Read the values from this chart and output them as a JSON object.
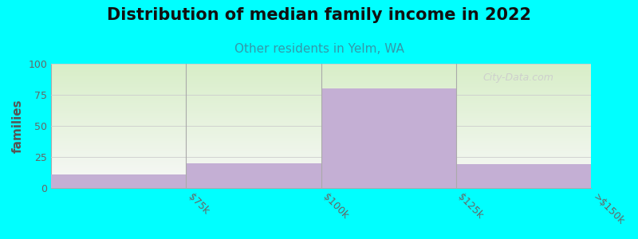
{
  "title": "Distribution of median family income in 2022",
  "subtitle": "Other residents in Yelm, WA",
  "ylabel": "families",
  "categories": [
    "$75k",
    "$100k",
    "$125k",
    ">$150k"
  ],
  "values": [
    11,
    20,
    80,
    19
  ],
  "bar_color": "#c4afd4",
  "bg_color": "#00ffff",
  "plot_bg_top": "#d8eec8",
  "plot_bg_bottom": "#f8f8f8",
  "ylim": [
    0,
    100
  ],
  "yticks": [
    0,
    25,
    50,
    75,
    100
  ],
  "title_fontsize": 15,
  "subtitle_fontsize": 11,
  "subtitle_color": "#3399aa",
  "ylabel_color": "#555555",
  "tick_color": "#666666",
  "watermark": "City-Data.com",
  "bar_width": 1.0
}
